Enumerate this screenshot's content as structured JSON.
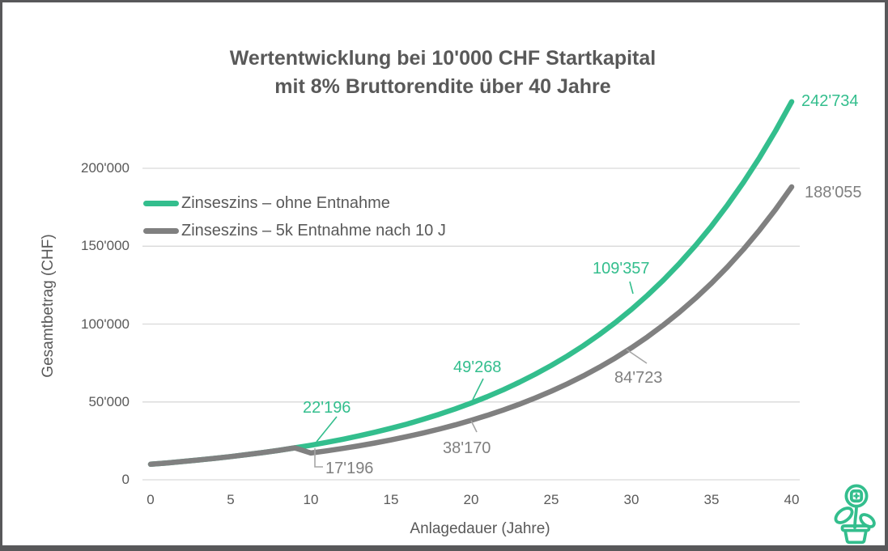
{
  "frame": {
    "background": "#FFFFFF",
    "border_color": "#58585A"
  },
  "title": {
    "line1": "Wertentwicklung bei 10'000 CHF Startkapital",
    "line2": "mit 8% Bruttorendite über 40 Jahre",
    "color": "#595959"
  },
  "legend": {
    "items": [
      {
        "label": "Zinseszins – ohne Entnahme",
        "color": "#33BE8D"
      },
      {
        "label": "Zinseszins – 5k Entnahme nach 10 J",
        "color": "#808080"
      }
    ]
  },
  "axes": {
    "x_title": "Anlagedauer (Jahre)",
    "y_title": "Gesamtbetrag (CHF)",
    "x_tick_labels": [
      "0",
      "5",
      "10",
      "15",
      "20",
      "25",
      "30",
      "35",
      "40"
    ],
    "y_tick_labels": [
      "0",
      "50'000",
      "100'000",
      "150'000",
      "200'000"
    ],
    "tick_color": "#595959",
    "gridline_color": "#D9D9D9"
  },
  "icon": {
    "name": "plant-icon",
    "color": "#33BE8D"
  },
  "chart_data": {
    "type": "line",
    "title": "Wertentwicklung bei 10'000 CHF Startkapital mit 8% Bruttorendite über 40 Jahre",
    "xlabel": "Anlagedauer (Jahre)",
    "ylabel": "Gesamtbetrag (CHF)",
    "xlim": [
      0,
      40
    ],
    "ylim": [
      0,
      250000
    ],
    "x_ticks": [
      0,
      5,
      10,
      15,
      20,
      25,
      30,
      35,
      40
    ],
    "y_tick_values": [
      0,
      50000,
      100000,
      150000,
      200000
    ],
    "grid": "horizontal",
    "legend_position": "upper-left-inside",
    "x": [
      0,
      1,
      2,
      3,
      4,
      5,
      6,
      7,
      8,
      9,
      10,
      11,
      12,
      13,
      14,
      15,
      16,
      17,
      18,
      19,
      20,
      21,
      22,
      23,
      24,
      25,
      26,
      27,
      28,
      29,
      30,
      31,
      32,
      33,
      34,
      35,
      36,
      37,
      38,
      39,
      40
    ],
    "series": [
      {
        "name": "Zinseszins – ohne Entnahme",
        "color": "#33BE8D",
        "values": [
          10000,
          10830,
          11729,
          12702,
          13757,
          14899,
          16135,
          17474,
          18925,
          20495,
          22196,
          24039,
          26034,
          28195,
          30535,
          33069,
          35814,
          38786,
          42006,
          45492,
          49268,
          53357,
          57786,
          62582,
          67776,
          73402,
          79494,
          86092,
          93238,
          100976,
          109357,
          118434,
          128264,
          138910,
          150439,
          162926,
          176448,
          191094,
          206954,
          224132,
          242734
        ]
      },
      {
        "name": "Zinseszins – 5k Entnahme nach 10 J",
        "color": "#808080",
        "values": [
          10000,
          10830,
          11729,
          12702,
          13757,
          14899,
          16135,
          17474,
          18925,
          20495,
          17196,
          18623,
          20169,
          21843,
          23656,
          25620,
          27746,
          30049,
          32543,
          35245,
          38170,
          41338,
          44769,
          48485,
          52509,
          56868,
          61588,
          66700,
          72237,
          78232,
          84723,
          91755,
          99372,
          107621,
          116553,
          126227,
          136704,
          148050,
          160338,
          173646,
          188055
        ]
      }
    ],
    "annotations": [
      {
        "id": "s0y10",
        "text": "22'196",
        "series": 0,
        "year": 10,
        "value": 22196
      },
      {
        "id": "s1y10",
        "text": "17'196",
        "series": 1,
        "year": 10,
        "value": 17196
      },
      {
        "id": "s0y20",
        "text": "49'268",
        "series": 0,
        "year": 20,
        "value": 49268
      },
      {
        "id": "s1y20",
        "text": "38'170",
        "series": 1,
        "year": 20,
        "value": 38170
      },
      {
        "id": "s0y30",
        "text": "109'357",
        "series": 0,
        "year": 30,
        "value": 109357
      },
      {
        "id": "s1y30",
        "text": "84'723",
        "series": 1,
        "year": 30,
        "value": 84723
      },
      {
        "id": "s0y40",
        "text": "242'734",
        "series": 0,
        "year": 40,
        "value": 242734
      },
      {
        "id": "s1y40",
        "text": "188'055",
        "series": 1,
        "year": 40,
        "value": 188055
      }
    ]
  }
}
